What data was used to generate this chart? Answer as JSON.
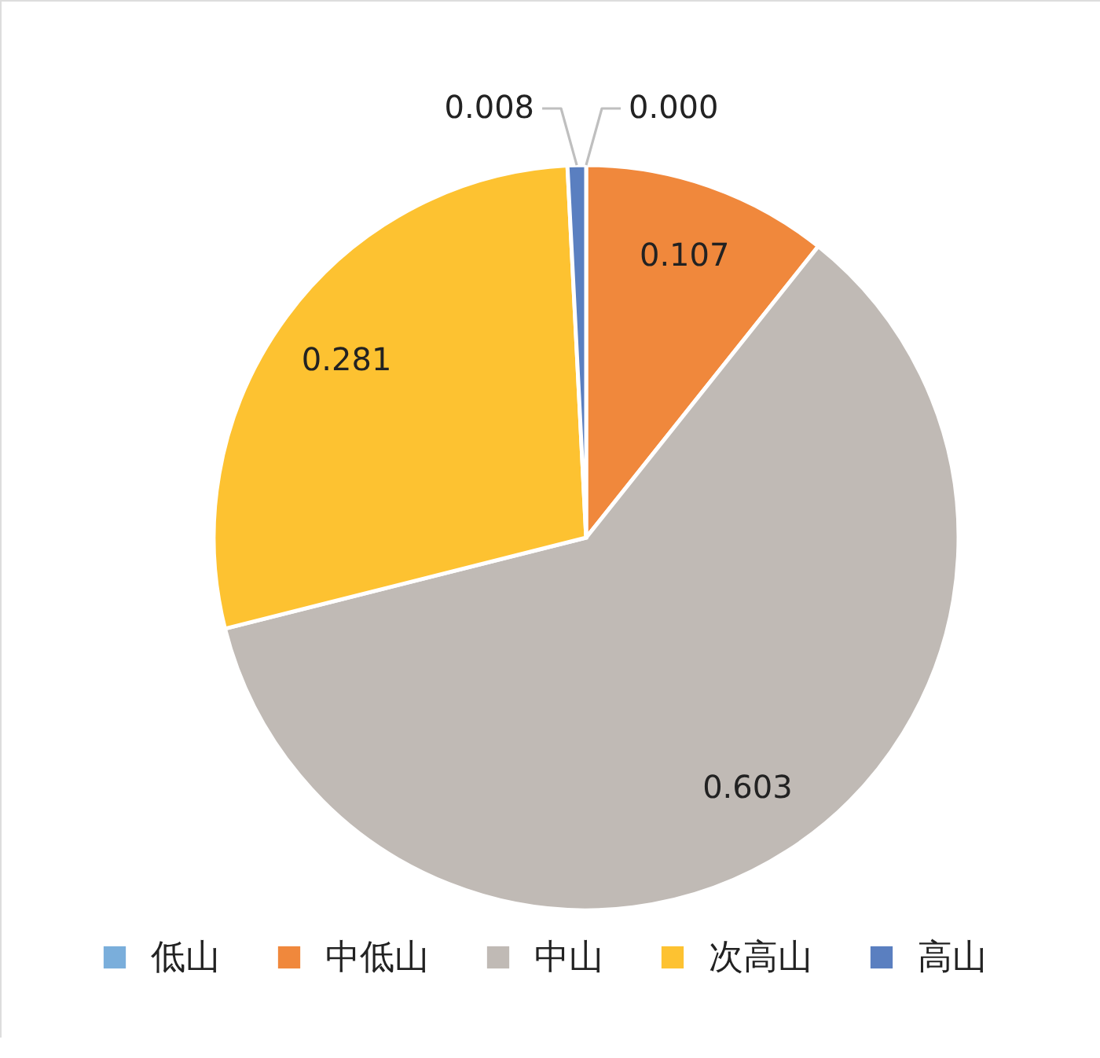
{
  "chart_data": {
    "type": "pie",
    "categories": [
      "低山",
      "中低山",
      "中山",
      "次高山",
      "高山"
    ],
    "values": [
      0.0,
      0.107,
      0.603,
      0.281,
      0.008
    ],
    "colors": [
      "#7aaedb",
      "#f0883c",
      "#c0bab5",
      "#fdc231",
      "#5a7fc0"
    ],
    "value_labels": [
      "0.000",
      "0.107",
      "0.603",
      "0.281",
      "0.008"
    ],
    "legend": "bottom"
  }
}
